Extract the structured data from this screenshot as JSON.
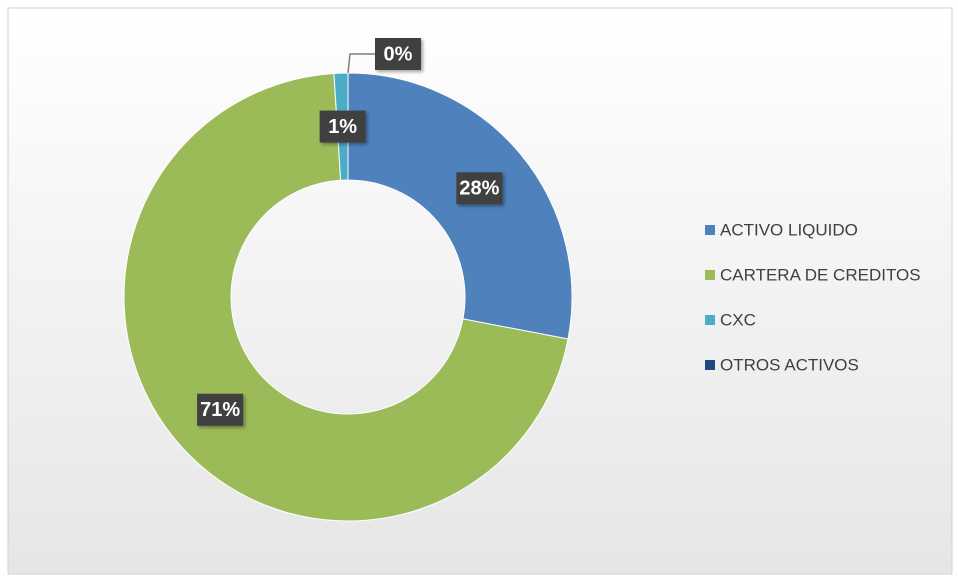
{
  "chart_data": {
    "type": "donut",
    "categories": [
      "ACTIVO LIQUIDO",
      "CARTERA DE CREDITOS",
      "CXC",
      "OTROS ACTIVOS"
    ],
    "values": [
      28,
      71,
      1,
      0
    ],
    "value_labels": [
      "28%",
      "71%",
      "1%",
      "0%"
    ],
    "colors": [
      "#4f81bd",
      "#9bbb59",
      "#4bacc6",
      "#1f497d"
    ],
    "legend": "right"
  }
}
